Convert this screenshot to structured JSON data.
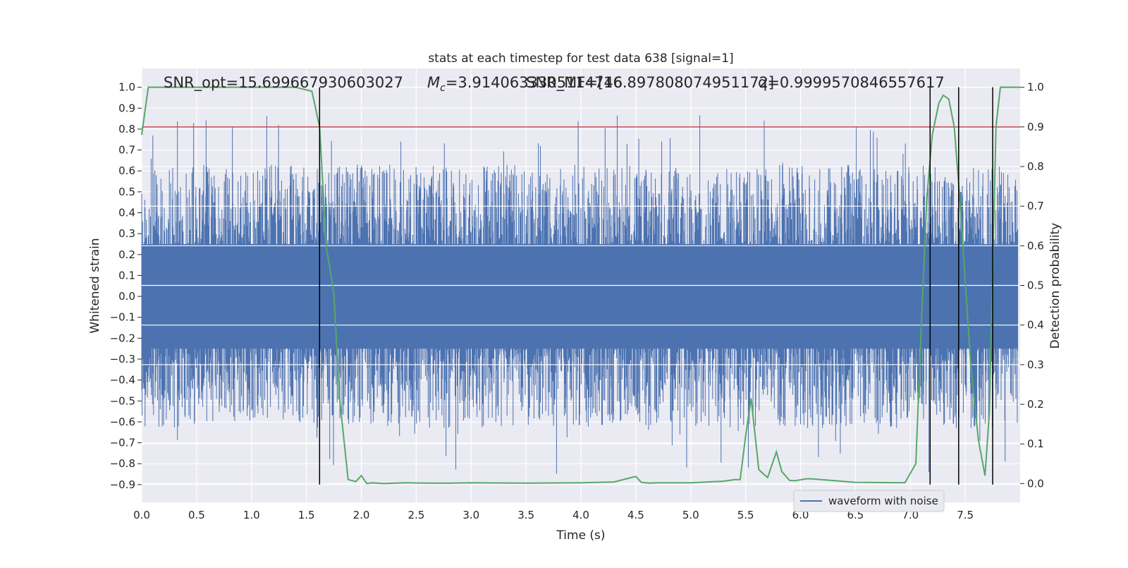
{
  "chart_data": {
    "type": "line",
    "title": "stats at each timestep for test data 638 [signal=1]",
    "xlabel": "Time (s)",
    "ylabel": "Whitened strain",
    "y2label": "Detection probability",
    "xlim": [
      0.0,
      8.0
    ],
    "ylim": [
      -0.985,
      1.09
    ],
    "y2lim": [
      -0.0475,
      1.0475
    ],
    "x_ticks": [
      "0.0",
      "0.5",
      "1.0",
      "1.5",
      "2.0",
      "2.5",
      "3.0",
      "3.5",
      "4.0",
      "4.5",
      "5.0",
      "5.5",
      "6.0",
      "6.5",
      "7.0",
      "7.5"
    ],
    "y_ticks": [
      "1.0",
      "0.9",
      "0.8",
      "0.7",
      "0.6",
      "0.5",
      "0.4",
      "0.3",
      "0.2",
      "0.1",
      "0.0",
      "−0.1",
      "−0.2",
      "−0.3",
      "−0.4",
      "−0.5",
      "−0.6",
      "−0.7",
      "−0.8",
      "−0.9"
    ],
    "y2_ticks": [
      "1.0",
      "0.9",
      "0.8",
      "0.7",
      "0.6",
      "0.5",
      "0.4",
      "0.3",
      "0.2",
      "0.1",
      "0.0"
    ],
    "grid": true,
    "legend_position": "lower-right",
    "annotations": {
      "snr_opt": "SNR_opt=15.699667930603027",
      "mc_prefix": "M",
      "mc_sub": "c",
      "mc_value": "=3.9140633305114746",
      "snr_mf": "SNR_MF=[16.897808074951172]",
      "q": "q=0.9999570846557617"
    },
    "series": [
      {
        "name": "waveform with noise",
        "color": "#4c72b0",
        "axis": "left",
        "kind": "noisy-strain",
        "core_amplitude": 0.25,
        "typical_peak": [
          0.42,
          -0.42
        ],
        "max": 0.88,
        "min": -0.9
      },
      {
        "color": "#55a868",
        "axis": "right",
        "x": [
          0.0,
          0.06,
          0.2,
          0.5,
          1.0,
          1.4,
          1.55,
          1.62,
          1.68,
          1.75,
          1.8,
          1.88,
          1.95,
          2.0,
          2.05,
          2.1,
          2.2,
          2.4,
          2.6,
          2.8,
          3.0,
          3.5,
          4.0,
          4.3,
          4.5,
          4.55,
          4.62,
          4.7,
          5.0,
          5.3,
          5.4,
          5.45,
          5.5,
          5.55,
          5.62,
          5.7,
          5.78,
          5.83,
          5.9,
          5.95,
          6.05,
          6.1,
          6.5,
          6.95,
          7.05,
          7.1,
          7.15,
          7.2,
          7.26,
          7.3,
          7.35,
          7.4,
          7.45,
          7.55,
          7.62,
          7.68,
          7.72,
          7.78,
          7.82,
          8.0
        ],
        "values": [
          0.88,
          1.0,
          1.0,
          1.0,
          1.0,
          1.0,
          0.99,
          0.9,
          0.6,
          0.48,
          0.22,
          0.01,
          0.005,
          0.02,
          0.0,
          0.002,
          0.0,
          0.002,
          0.001,
          0.001,
          0.002,
          0.001,
          0.002,
          0.004,
          0.018,
          0.003,
          0.001,
          0.002,
          0.002,
          0.006,
          0.01,
          0.01,
          0.12,
          0.215,
          0.035,
          0.015,
          0.08,
          0.03,
          0.008,
          0.007,
          0.012,
          0.012,
          0.003,
          0.002,
          0.05,
          0.4,
          0.72,
          0.88,
          0.96,
          0.98,
          0.97,
          0.9,
          0.72,
          0.3,
          0.11,
          0.02,
          0.18,
          0.9,
          1.0,
          1.0
        ]
      }
    ],
    "threshold_line": {
      "value": 0.9,
      "axis": "right",
      "color": "#c44e52"
    },
    "vertical_lines": {
      "x": [
        1.62,
        7.18,
        7.44,
        7.75
      ],
      "y_from": -0.9,
      "y_to": 1.0,
      "color": "#000000"
    }
  }
}
